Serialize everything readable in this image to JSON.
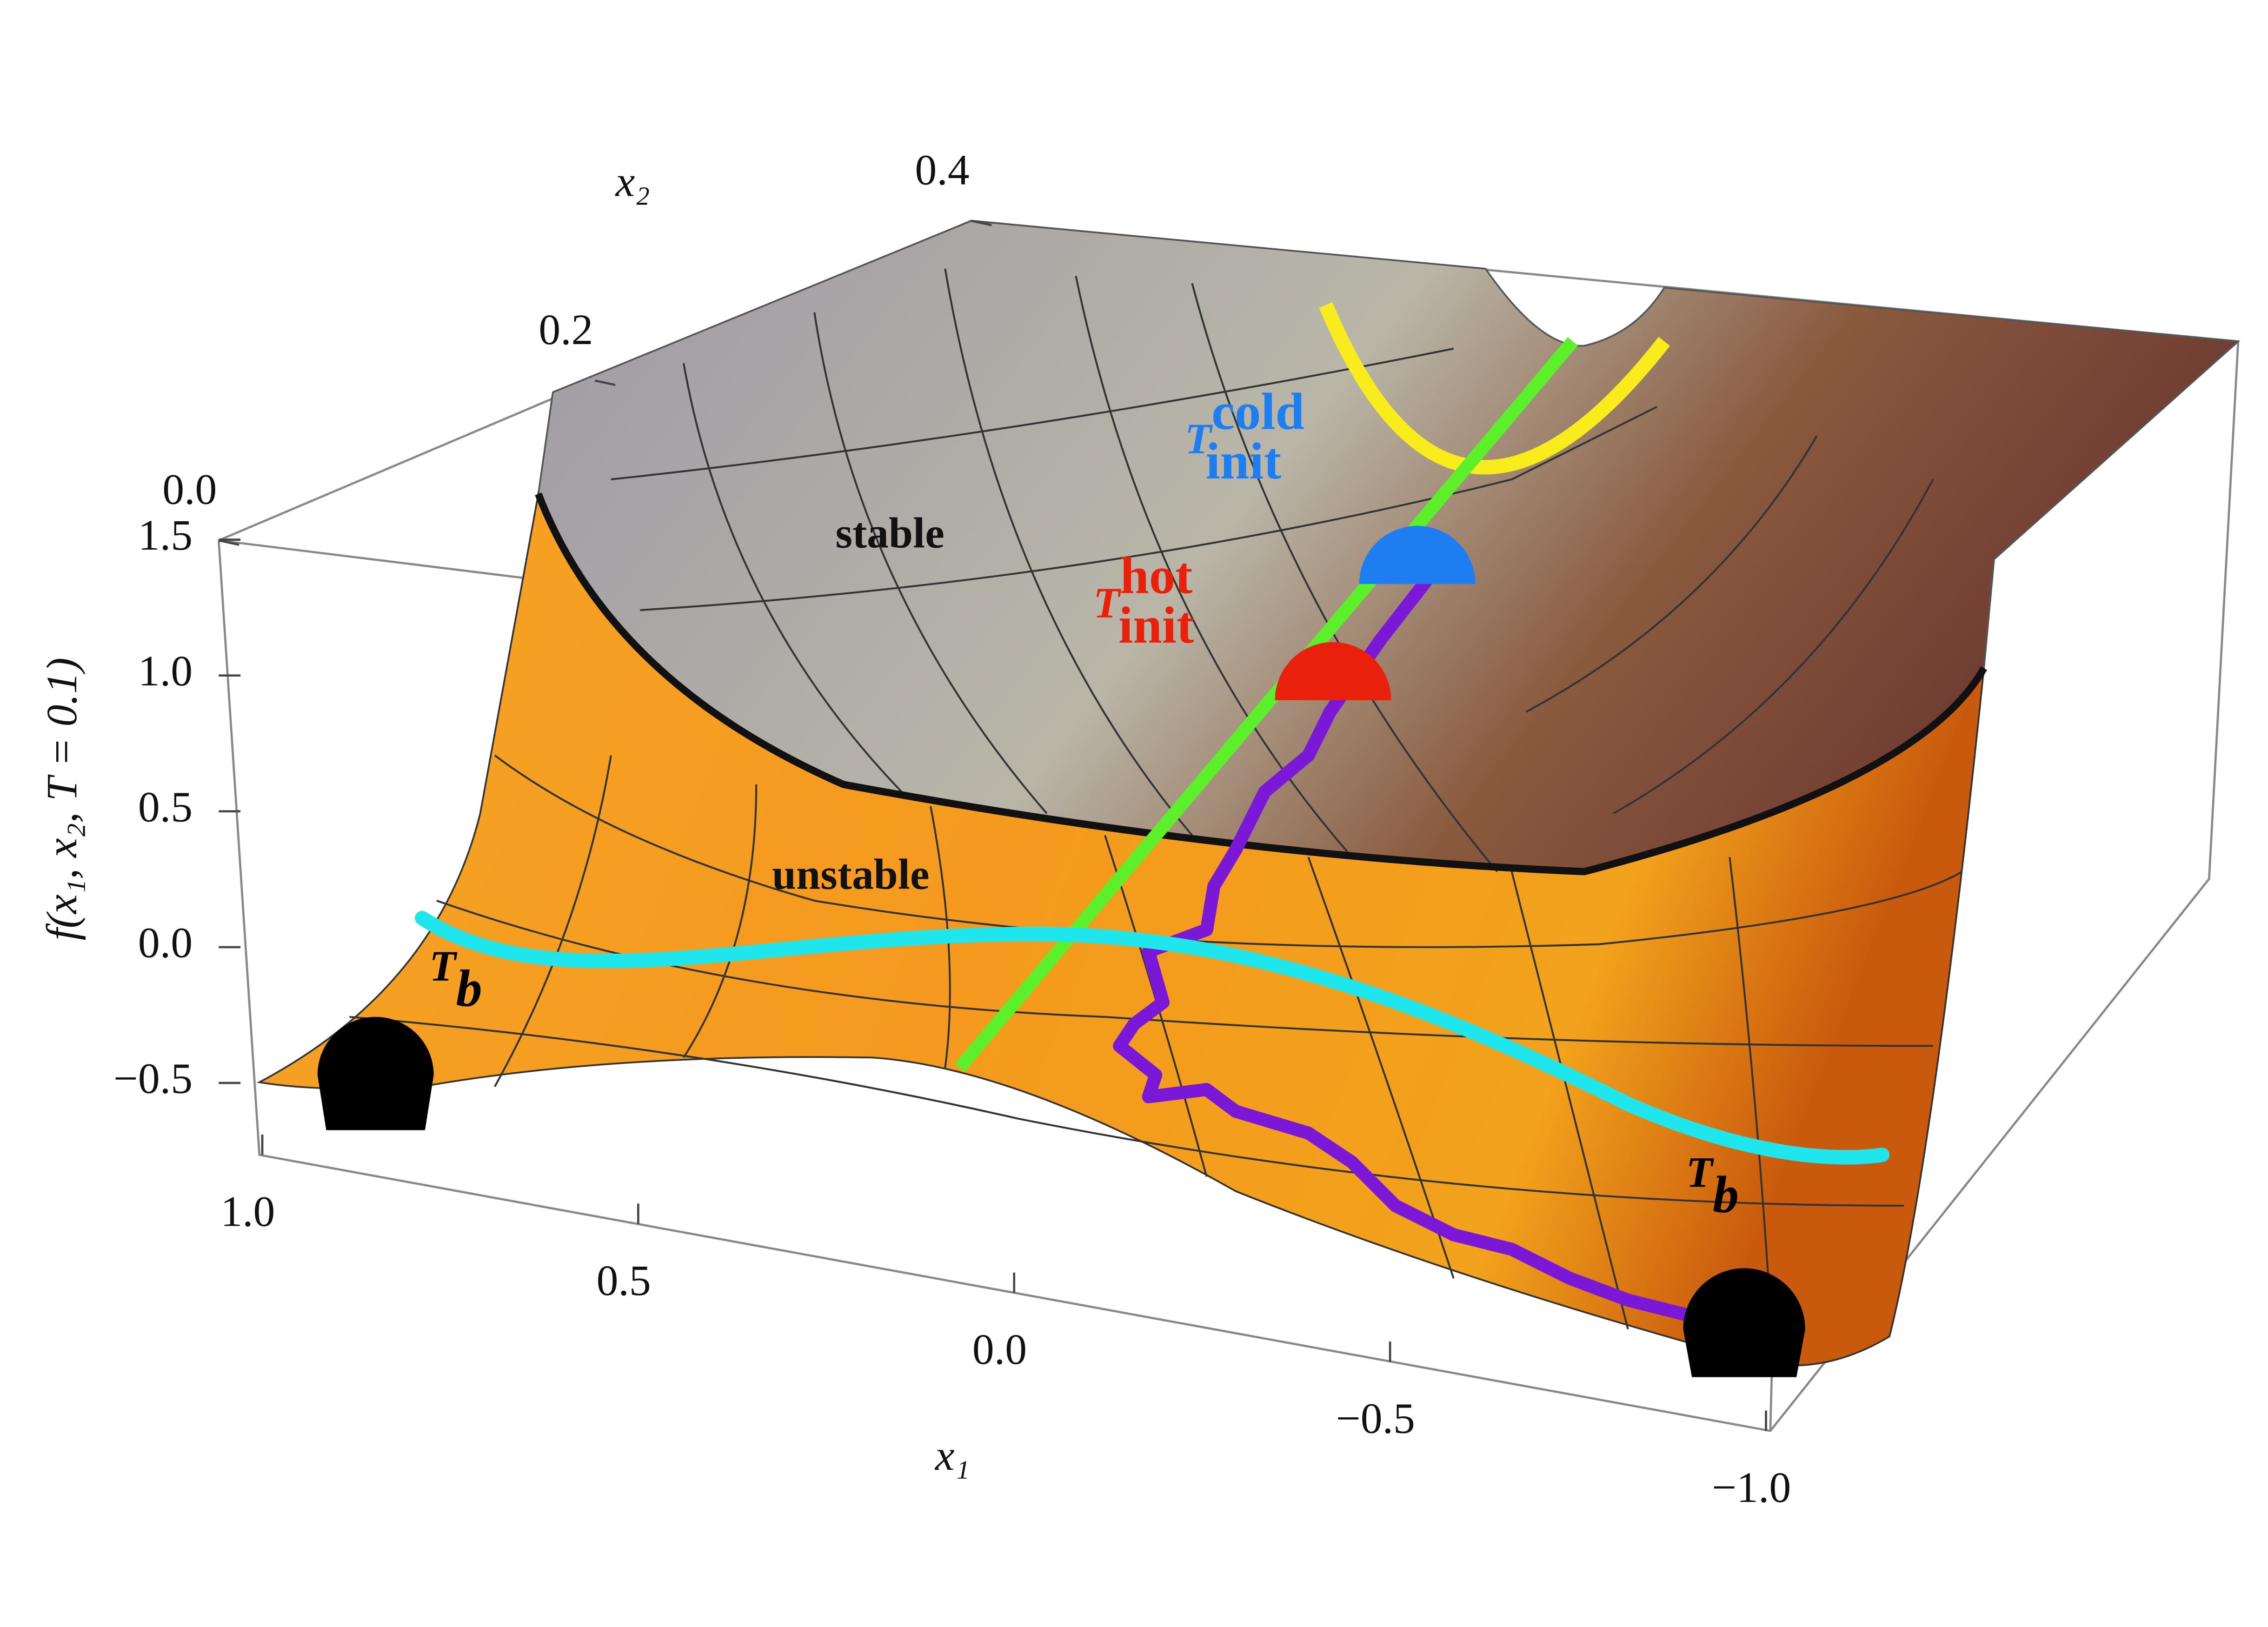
{
  "chart_data": {
    "type": "surface3d",
    "x1_label": "x₁",
    "x2_label": "x₂",
    "z_label": "f(x₁, x₂, T = 0.1)",
    "x1ticks": [
      {
        "value": 1,
        "label": "1.0"
      },
      0.5,
      {
        "value": 0,
        "label": "0.0"
      },
      {
        "value": -0.5,
        "label": "−0.5"
      },
      {
        "value": -1,
        "label": "−1.0"
      }
    ],
    "x2ticks": [
      {
        "value": 0,
        "label": "0.0"
      },
      0.2,
      0.4
    ],
    "zticks": [
      1.5,
      {
        "value": 1,
        "label": "1.0"
      },
      0.5,
      {
        "value": 0,
        "label": "0.0"
      },
      {
        "value": -0.5,
        "label": "−0.5"
      }
    ],
    "region_labels": [
      "stable",
      "unstable"
    ],
    "annotations": [
      {
        "symbol": "T",
        "subscript": "b",
        "color": "#000000"
      },
      {
        "symbol": "T",
        "subscript": "b",
        "color": "#000000"
      },
      {
        "symbol": "T",
        "subscript": "init",
        "superscript": "cold",
        "color": "#1e7df0"
      },
      {
        "symbol": "T",
        "subscript": "init",
        "superscript": "hot",
        "color": "#e8200c"
      }
    ]
  }
}
